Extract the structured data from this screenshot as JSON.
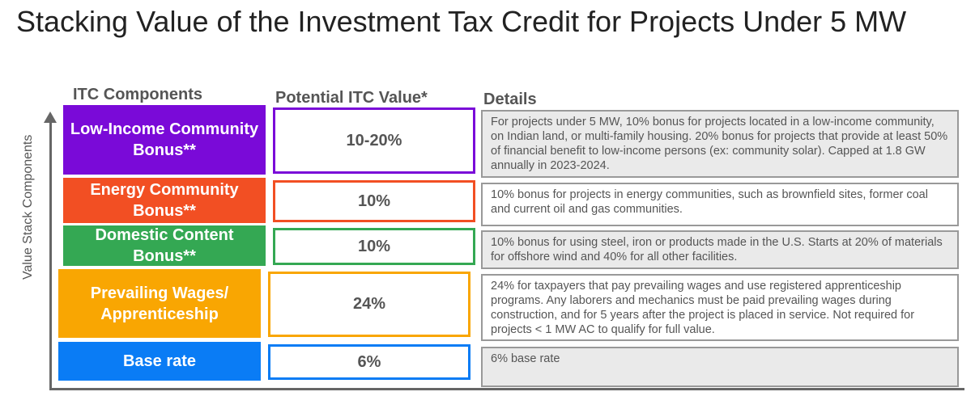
{
  "title": "Stacking Value of the Investment Tax Credit for Projects Under 5 MW",
  "headers": {
    "components": "ITC Components",
    "value": "Potential ITC Value*",
    "details": "Details"
  },
  "axis_label": "Value Stack Components",
  "rows": [
    {
      "component": "Low-Income Community Bonus**",
      "value": "10-20%",
      "color": "#7a0ad8",
      "details": "For projects under 5 MW, 10% bonus for projects located in a low-income community, on Indian land, or multi-family housing. 20% bonus for projects that provide at least 50% of financial benefit to low-income persons (ex: community solar). Capped at 1.8 GW annually in 2023-2024."
    },
    {
      "component": "Energy Community Bonus**",
      "value": "10%",
      "color": "#f24f23",
      "details": "10% bonus for projects in energy communities, such as brownfield sites, former coal and current oil and gas communities."
    },
    {
      "component": "Domestic Content Bonus**",
      "value": "10%",
      "color": "#34a853",
      "details": "10% bonus for using steel, iron or products made in the U.S. Starts at 20% of materials for offshore wind and 40% for all other facilities."
    },
    {
      "component": "Prevailing Wages/ Apprenticeship",
      "value": "24%",
      "color": "#f9a602",
      "details": "24% for taxpayers that pay prevailing wages and use registered apprenticeship programs. Any laborers and mechanics must be paid prevailing wages during construction, and for 5 years after the project is placed in service. Not required for projects < 1 MW AC to qualify for full value."
    },
    {
      "component": "Base rate",
      "value": "6%",
      "color": "#0a7cf5",
      "details": "6% base rate"
    }
  ]
}
